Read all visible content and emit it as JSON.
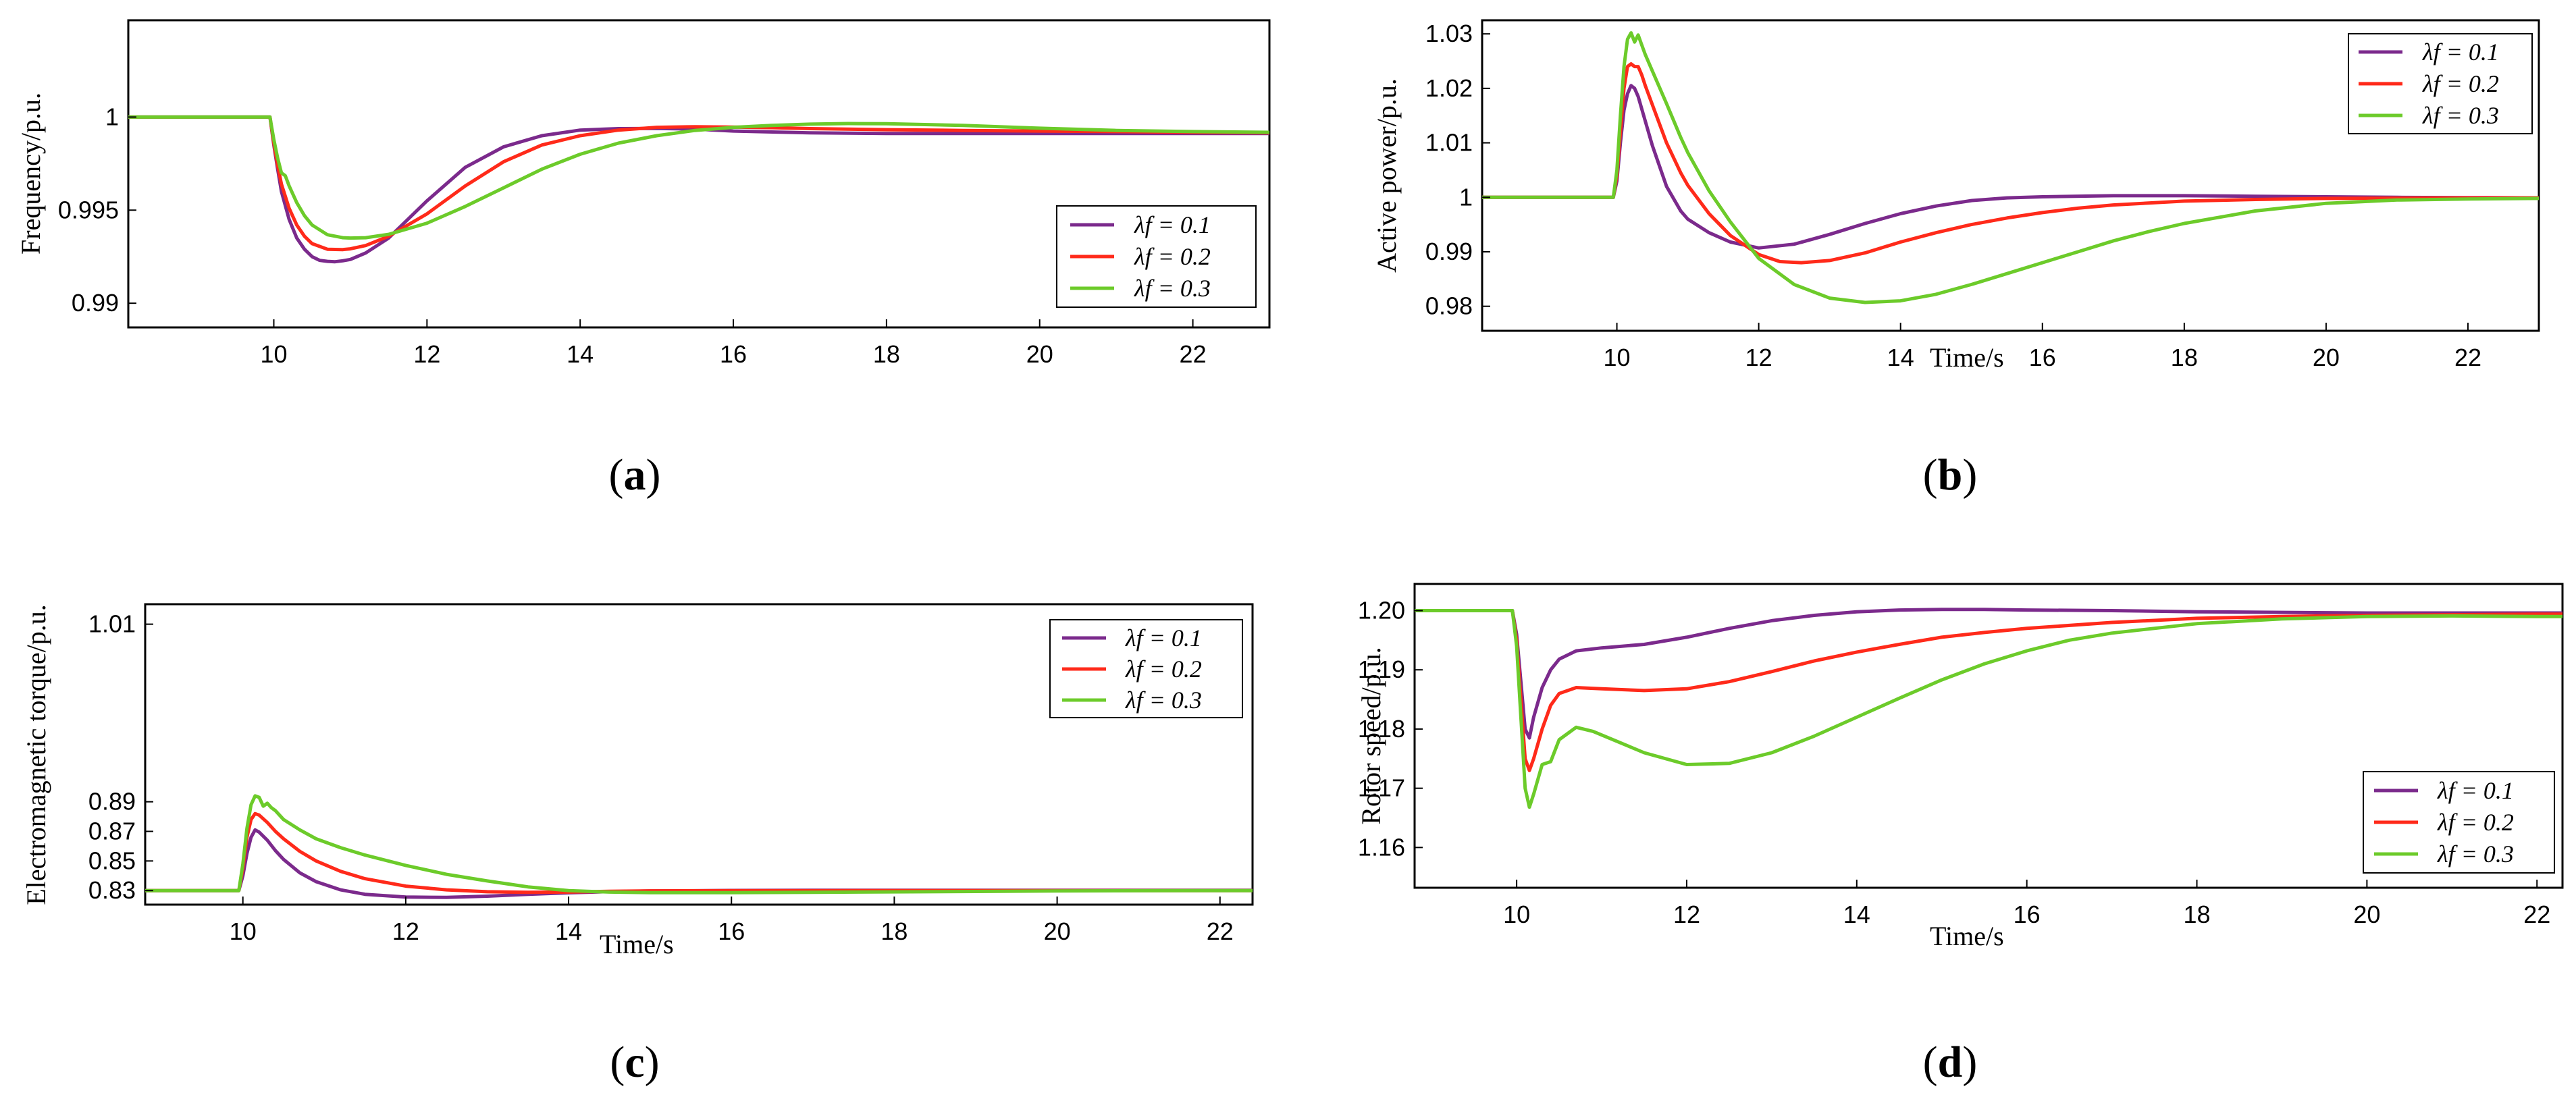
{
  "colors": {
    "s01": "#7b2a8c",
    "s02": "#ff2a1a",
    "s03": "#6ccb2a",
    "axis": "#000000"
  },
  "chart_data": [
    {
      "panel": "a",
      "panel_label": "a",
      "type": "line",
      "title": "",
      "xlabel": "",
      "ylabel": "Frequency/p.u.",
      "xlim": [
        8.1,
        23.0
      ],
      "ylim": [
        0.9887,
        1.0052
      ],
      "xticks": [
        10,
        12,
        14,
        16,
        18,
        20,
        22
      ],
      "yticks": [
        0.99,
        0.995,
        1
      ],
      "ytick_labels": [
        "0.99",
        "0.995",
        "1"
      ],
      "legend_position": "lower-right",
      "legend": [
        "λf = 0.1",
        "λf = 0.2",
        "λf = 0.3"
      ],
      "series": [
        {
          "name": "λf = 0.1",
          "color": "#7b2a8c",
          "x": [
            8.1,
            9.0,
            9.95,
            10.0,
            10.05,
            10.1,
            10.2,
            10.3,
            10.4,
            10.5,
            10.6,
            10.7,
            10.8,
            10.9,
            11.0,
            11.2,
            11.5,
            12.0,
            12.5,
            13.0,
            13.5,
            14.0,
            14.5,
            15.0,
            15.5,
            16.0,
            17.0,
            18.0,
            19.0,
            20.0,
            21.0,
            22.0,
            23.0
          ],
          "y": [
            1.0,
            1.0,
            1.0,
            0.9985,
            0.9972,
            0.996,
            0.9945,
            0.9935,
            0.9929,
            0.9925,
            0.9923,
            0.99225,
            0.99223,
            0.99228,
            0.99235,
            0.9927,
            0.9935,
            0.9955,
            0.9973,
            0.9984,
            0.999,
            0.9993,
            0.99938,
            0.99939,
            0.99935,
            0.99925,
            0.99915,
            0.99912,
            0.99912,
            0.99912,
            0.99912,
            0.99912,
            0.99912
          ]
        },
        {
          "name": "λf = 0.2",
          "color": "#ff2a1a",
          "x": [
            8.1,
            9.0,
            9.95,
            10.0,
            10.05,
            10.1,
            10.2,
            10.3,
            10.4,
            10.5,
            10.7,
            10.9,
            11.0,
            11.2,
            11.5,
            12.0,
            12.5,
            13.0,
            13.5,
            14.0,
            14.5,
            15.0,
            15.5,
            16.0,
            16.5,
            17.0,
            18.0,
            19.0,
            20.0,
            21.0,
            22.0,
            23.0
          ],
          "y": [
            1.0,
            1.0,
            1.0,
            0.9986,
            0.9974,
            0.9964,
            0.9951,
            0.9942,
            0.9936,
            0.9932,
            0.9929,
            0.99288,
            0.99292,
            0.9931,
            0.9936,
            0.9948,
            0.9963,
            0.9976,
            0.9985,
            0.999,
            0.9993,
            0.99945,
            0.99948,
            0.99946,
            0.99943,
            0.99938,
            0.99932,
            0.99928,
            0.99925,
            0.99922,
            0.99918,
            0.99915
          ]
        },
        {
          "name": "λf = 0.3",
          "color": "#6ccb2a",
          "x": [
            8.1,
            9.0,
            9.95,
            10.0,
            10.05,
            10.1,
            10.15,
            10.2,
            10.3,
            10.4,
            10.5,
            10.7,
            10.9,
            11.0,
            11.2,
            11.5,
            12.0,
            12.5,
            13.0,
            13.5,
            14.0,
            14.5,
            15.0,
            15.5,
            16.0,
            16.5,
            17.0,
            17.5,
            18.0,
            19.0,
            20.0,
            21.0,
            22.0,
            23.0
          ],
          "y": [
            1.0,
            1.0,
            1.0,
            0.9988,
            0.9978,
            0.997,
            0.99685,
            0.9963,
            0.9954,
            0.9947,
            0.9942,
            0.99368,
            0.99352,
            0.9935,
            0.99352,
            0.9937,
            0.9943,
            0.9952,
            0.9962,
            0.9972,
            0.998,
            0.9986,
            0.999,
            0.99928,
            0.99945,
            0.99955,
            0.99962,
            0.99965,
            0.99964,
            0.99955,
            0.9994,
            0.99928,
            0.99922,
            0.99918
          ]
        }
      ]
    },
    {
      "panel": "b",
      "panel_label": "b",
      "type": "line",
      "title": "",
      "xlabel": "Time/s",
      "ylabel": "Active power/p.u.",
      "xlim": [
        8.1,
        23.0
      ],
      "ylim": [
        0.9755,
        1.0325
      ],
      "xticks": [
        10,
        12,
        14,
        16,
        18,
        20,
        22
      ],
      "yticks": [
        0.98,
        0.99,
        1.0,
        1.01,
        1.02,
        1.03
      ],
      "ytick_labels": [
        "0.98",
        "0.99",
        "1",
        "1.01",
        "1.02",
        "1.03"
      ],
      "legend_position": "top-right",
      "legend": [
        "λf = 0.1",
        "λf = 0.2",
        "λf = 0.3"
      ],
      "series": [
        {
          "name": "λf = 0.1",
          "color": "#7b2a8c",
          "x": [
            8.1,
            9.0,
            9.95,
            10.0,
            10.05,
            10.1,
            10.15,
            10.2,
            10.25,
            10.3,
            10.4,
            10.5,
            10.7,
            10.9,
            11.0,
            11.3,
            11.6,
            12.0,
            12.5,
            13.0,
            13.5,
            14.0,
            14.5,
            15.0,
            15.5,
            16.0,
            17.0,
            18.0,
            19.0,
            20.0,
            21.0,
            22.0,
            23.0
          ],
          "y": [
            1.0,
            1.0,
            1.0,
            1.003,
            1.01,
            1.016,
            1.019,
            1.0205,
            1.02,
            1.0185,
            1.014,
            1.0095,
            1.002,
            0.9975,
            0.996,
            0.9935,
            0.9918,
            0.9907,
            0.9914,
            0.9932,
            0.9952,
            0.997,
            0.9984,
            0.9994,
            0.9999,
            1.0001,
            1.0003,
            1.0003,
            1.0002,
            1.0001,
            1.0,
            0.99995,
            0.9999
          ]
        },
        {
          "name": "λf = 0.2",
          "color": "#ff2a1a",
          "x": [
            8.1,
            9.0,
            9.95,
            10.0,
            10.05,
            10.1,
            10.15,
            10.2,
            10.25,
            10.3,
            10.35,
            10.4,
            10.5,
            10.7,
            10.9,
            11.0,
            11.3,
            11.6,
            12.0,
            12.3,
            12.6,
            13.0,
            13.5,
            14.0,
            14.5,
            15.0,
            15.5,
            16.0,
            16.5,
            17.0,
            18.0,
            19.0,
            20.0,
            21.0,
            22.0,
            23.0
          ],
          "y": [
            1.0,
            1.0,
            1.0,
            1.004,
            1.012,
            1.02,
            1.024,
            1.0245,
            1.024,
            1.024,
            1.0225,
            1.0205,
            1.017,
            1.01,
            1.0045,
            1.0022,
            0.997,
            0.993,
            0.9895,
            0.9882,
            0.988,
            0.9884,
            0.9898,
            0.9918,
            0.9935,
            0.995,
            0.9962,
            0.9972,
            0.998,
            0.9986,
            0.9993,
            0.9996,
            0.9998,
            0.99985,
            0.9999,
            0.9999
          ]
        },
        {
          "name": "λf = 0.3",
          "color": "#6ccb2a",
          "x": [
            8.1,
            9.0,
            9.95,
            10.0,
            10.05,
            10.1,
            10.15,
            10.2,
            10.25,
            10.3,
            10.35,
            10.4,
            10.5,
            10.7,
            10.9,
            11.0,
            11.3,
            11.6,
            12.0,
            12.5,
            13.0,
            13.5,
            14.0,
            14.5,
            15.0,
            15.5,
            16.0,
            16.5,
            17.0,
            17.5,
            18.0,
            19.0,
            20.0,
            21.0,
            22.0,
            23.0
          ],
          "y": [
            1.0,
            1.0,
            1.0,
            1.005,
            1.015,
            1.024,
            1.029,
            1.0302,
            1.0285,
            1.0298,
            1.028,
            1.0262,
            1.0232,
            1.0172,
            1.011,
            1.0082,
            1.0012,
            0.9955,
            0.9888,
            0.984,
            0.9815,
            0.9807,
            0.981,
            0.9822,
            0.984,
            0.986,
            0.988,
            0.99,
            0.992,
            0.9937,
            0.9952,
            0.9975,
            0.9989,
            0.9995,
            0.9997,
            0.9998
          ]
        }
      ]
    },
    {
      "panel": "c",
      "panel_label": "c",
      "type": "line",
      "title": "",
      "xlabel": "Time/s",
      "ylabel": "Electromagnetic torque/p.u.",
      "xlim": [
        8.8,
        22.4
      ],
      "ylim": [
        0.8205,
        1.0235
      ],
      "xticks": [
        10,
        12,
        14,
        16,
        18,
        20,
        22
      ],
      "yticks": [
        0.83,
        0.85,
        0.87,
        0.89,
        1.01
      ],
      "ytick_labels": [
        "0.83",
        "0.85",
        "0.87",
        "0.89",
        "1.01"
      ],
      "legend_position": "top-right",
      "legend": [
        "λf = 0.1",
        "λf = 0.2",
        "λf = 0.3"
      ],
      "series": [
        {
          "name": "λf = 0.1",
          "color": "#7b2a8c",
          "x": [
            8.8,
            9.5,
            9.95,
            10.0,
            10.05,
            10.1,
            10.15,
            10.2,
            10.3,
            10.4,
            10.5,
            10.7,
            10.9,
            11.2,
            11.5,
            12.0,
            12.5,
            13.0,
            13.5,
            14.0,
            14.5,
            15.0,
            16.0,
            17.0,
            18.0,
            19.0,
            20.0,
            21.0,
            22.0,
            22.4
          ],
          "y": [
            0.83,
            0.83,
            0.83,
            0.84,
            0.855,
            0.866,
            0.871,
            0.8695,
            0.864,
            0.857,
            0.851,
            0.842,
            0.836,
            0.8305,
            0.8275,
            0.8256,
            0.8254,
            0.8262,
            0.8275,
            0.8285,
            0.8293,
            0.8297,
            0.8301,
            0.8302,
            0.8302,
            0.8302,
            0.8302,
            0.8302,
            0.8302,
            0.8302
          ]
        },
        {
          "name": "λf = 0.2",
          "color": "#ff2a1a",
          "x": [
            8.8,
            9.5,
            9.95,
            10.0,
            10.05,
            10.1,
            10.15,
            10.2,
            10.3,
            10.4,
            10.5,
            10.7,
            10.9,
            11.2,
            11.5,
            12.0,
            12.5,
            13.0,
            13.5,
            14.0,
            14.5,
            15.0,
            16.0,
            17.0,
            18.0,
            19.0,
            20.0,
            21.0,
            22.0,
            22.4
          ],
          "y": [
            0.83,
            0.83,
            0.83,
            0.845,
            0.866,
            0.878,
            0.882,
            0.881,
            0.876,
            0.87,
            0.865,
            0.8565,
            0.85,
            0.843,
            0.838,
            0.833,
            0.8305,
            0.8292,
            0.8288,
            0.829,
            0.8295,
            0.8298,
            0.8299,
            0.8299,
            0.83,
            0.83,
            0.83,
            0.83,
            0.83,
            0.83
          ]
        },
        {
          "name": "λf = 0.3",
          "color": "#6ccb2a",
          "x": [
            8.8,
            9.5,
            9.95,
            10.0,
            10.05,
            10.1,
            10.15,
            10.2,
            10.25,
            10.3,
            10.35,
            10.4,
            10.5,
            10.7,
            10.9,
            11.2,
            11.5,
            12.0,
            12.5,
            13.0,
            13.5,
            14.0,
            14.5,
            15.0,
            16.0,
            17.0,
            18.0,
            19.0,
            20.0,
            21.0,
            22.0,
            22.4
          ],
          "y": [
            0.83,
            0.83,
            0.83,
            0.848,
            0.872,
            0.888,
            0.894,
            0.893,
            0.887,
            0.889,
            0.886,
            0.884,
            0.878,
            0.871,
            0.865,
            0.859,
            0.854,
            0.847,
            0.841,
            0.8365,
            0.8325,
            0.83,
            0.829,
            0.8286,
            0.8286,
            0.8288,
            0.8291,
            0.8294,
            0.8297,
            0.8299,
            0.83,
            0.83
          ]
        }
      ]
    },
    {
      "panel": "d",
      "panel_label": "d",
      "type": "line",
      "title": "",
      "xlabel": "Time/s",
      "ylabel": "Rotor speed/p.u.",
      "xlim": [
        8.8,
        22.3
      ],
      "ylim": [
        1.1532,
        1.2045
      ],
      "xticks": [
        10,
        12,
        14,
        16,
        18,
        20,
        22
      ],
      "yticks": [
        1.16,
        1.17,
        1.18,
        1.19,
        1.2
      ],
      "ytick_labels": [
        "1.16",
        "1.17",
        "1.18",
        "1.19",
        "1.20"
      ],
      "legend_position": "bottom-right",
      "legend": [
        "λf = 0.1",
        "λf = 0.2",
        "λf = 0.3"
      ],
      "series": [
        {
          "name": "λf = 0.1",
          "color": "#7b2a8c",
          "x": [
            8.8,
            9.5,
            9.95,
            10.0,
            10.05,
            10.1,
            10.15,
            10.2,
            10.3,
            10.4,
            10.5,
            10.7,
            11.0,
            11.5,
            12.0,
            12.5,
            13.0,
            13.5,
            14.0,
            14.5,
            15.0,
            15.5,
            16.0,
            17.0,
            18.0,
            19.0,
            20.0,
            21.0,
            22.0,
            22.3
          ],
          "y": [
            1.2,
            1.2,
            1.2,
            1.196,
            1.188,
            1.18,
            1.1785,
            1.182,
            1.187,
            1.19,
            1.1918,
            1.1932,
            1.1937,
            1.1943,
            1.1955,
            1.197,
            1.1983,
            1.1992,
            1.1998,
            1.2001,
            1.2002,
            1.2002,
            1.2001,
            1.2,
            1.1998,
            1.1997,
            1.1996,
            1.1996,
            1.1996,
            1.1996
          ]
        },
        {
          "name": "λf = 0.2",
          "color": "#ff2a1a",
          "x": [
            8.8,
            9.5,
            9.95,
            10.0,
            10.05,
            10.1,
            10.15,
            10.2,
            10.3,
            10.4,
            10.5,
            10.7,
            11.0,
            11.5,
            12.0,
            12.5,
            13.0,
            13.5,
            14.0,
            14.5,
            15.0,
            15.5,
            16.0,
            17.0,
            18.0,
            19.0,
            20.0,
            21.0,
            22.0,
            22.3
          ],
          "y": [
            1.2,
            1.2,
            1.2,
            1.195,
            1.185,
            1.175,
            1.173,
            1.175,
            1.18,
            1.184,
            1.186,
            1.187,
            1.1868,
            1.1865,
            1.1868,
            1.188,
            1.1897,
            1.1915,
            1.193,
            1.1943,
            1.1955,
            1.1963,
            1.197,
            1.198,
            1.1987,
            1.199,
            1.1992,
            1.1993,
            1.1994,
            1.1994
          ]
        },
        {
          "name": "λf = 0.3",
          "color": "#6ccb2a",
          "x": [
            8.8,
            9.5,
            9.95,
            10.0,
            10.05,
            10.1,
            10.15,
            10.2,
            10.3,
            10.4,
            10.5,
            10.7,
            10.9,
            11.2,
            11.5,
            12.0,
            12.5,
            13.0,
            13.5,
            14.0,
            14.5,
            15.0,
            15.5,
            16.0,
            16.5,
            17.0,
            18.0,
            19.0,
            20.0,
            21.0,
            22.0,
            22.3
          ],
          "y": [
            1.2,
            1.2,
            1.2,
            1.194,
            1.182,
            1.17,
            1.1668,
            1.169,
            1.174,
            1.1745,
            1.1782,
            1.1803,
            1.1796,
            1.1778,
            1.176,
            1.174,
            1.1742,
            1.176,
            1.1788,
            1.182,
            1.1852,
            1.1883,
            1.191,
            1.1932,
            1.195,
            1.1962,
            1.1978,
            1.1986,
            1.199,
            1.1991,
            1.199,
            1.199
          ]
        }
      ]
    }
  ]
}
